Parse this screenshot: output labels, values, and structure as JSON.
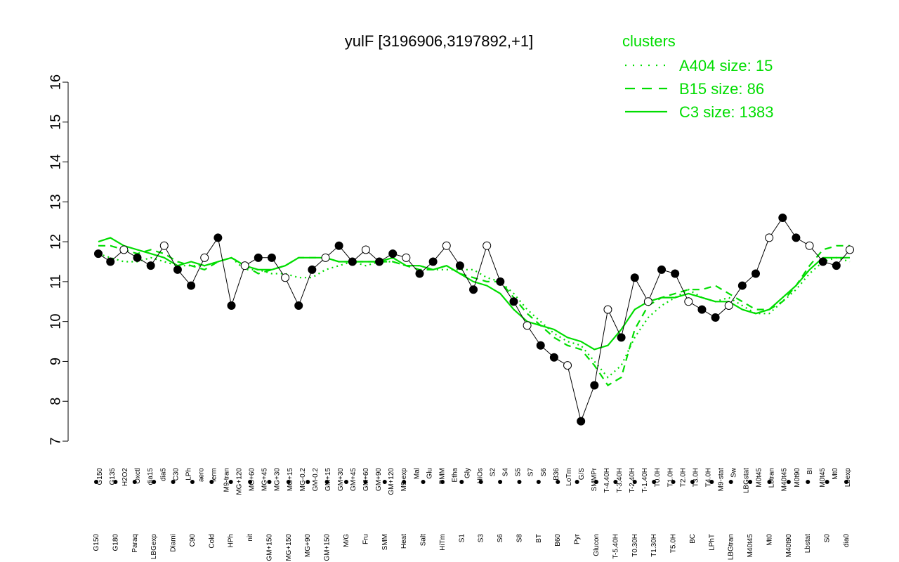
{
  "chart_data": {
    "type": "line",
    "title": "yulF [3196906,3197892,+1]",
    "xlabel": "",
    "ylabel": "",
    "ylim": [
      7,
      16
    ],
    "yticks": [
      7,
      8,
      9,
      10,
      11,
      12,
      13,
      14,
      15,
      16
    ],
    "grid": false,
    "legend": {
      "title": "clusters",
      "placement": "top-right",
      "entries": [
        {
          "label": "A404 size: 15",
          "style": "dotted"
        },
        {
          "label": "B15 size: 86",
          "style": "dashed"
        },
        {
          "label": "C3 size: 1383",
          "style": "solid"
        }
      ]
    },
    "colors": {
      "series": "#00dd00",
      "points_line": "#000000"
    },
    "x_tick_labels": [
      "G150",
      "G180",
      "G135",
      "Paraq",
      "H2O2",
      "Oxctl",
      "LBGexp",
      "dia15",
      "Diami",
      "dia5",
      "C90",
      "C30",
      "Cold",
      "LPh",
      "HPh",
      "aero",
      "nit",
      "ferm",
      "GM+150",
      "MG+150",
      "M9-tran",
      "MG+120",
      "MG+90",
      "MG+60",
      "MG+45",
      "MG+30",
      "MG+15",
      "MG-0.2",
      "GM-0.2",
      "GM+15",
      "GM+30",
      "GM+45",
      "GM+60",
      "GM+90",
      "GM+120",
      "M/G",
      "M9-exp",
      "Mal",
      "Fru",
      "Glu",
      "SMM",
      "BMM",
      "Heat",
      "Etha",
      "Salt",
      "Gly",
      "HiTm",
      "HiOs",
      "S1",
      "S2",
      "S3",
      "S4",
      "S5",
      "S6",
      "S7",
      "S8",
      "S6",
      "BT",
      "B36",
      "B60",
      "LoTm",
      "Pyr",
      "G/S",
      "Glucon",
      "SMMPr",
      "T-5.40H",
      "T-4.40H",
      "T-3.40H",
      "T-2.40H",
      "T-1.40H",
      "T0.0H",
      "T0.30H",
      "T1.0H",
      "T1.30H",
      "T2.0H",
      "T3.0H",
      "T4.0H",
      "T5.0H",
      "M9-stat",
      "BC",
      "Sw",
      "LPhT",
      "LBGstat",
      "LBGtran",
      "M0t45",
      "M40t45",
      "Lbtran",
      "Mt0",
      "M40t90",
      "M0t90",
      "Lbstat",
      "BI",
      "S0",
      "M0t45",
      "dia0",
      "Mt0",
      "Lbexp",
      "Lbexp"
    ],
    "x_tick_labels_top": [
      "G150",
      "G135",
      "H2O2",
      "Oxctl",
      "dia15",
      "dia5",
      "C30",
      "LPh",
      "aero",
      "ferm",
      "M9-tran",
      "MG+120",
      "MG+60",
      "MG+45",
      "MG+30",
      "MG+15",
      "MG-0.2",
      "GM-0.2",
      "GM+15",
      "GM+30",
      "GM+45",
      "GM+60",
      "GM+90",
      "GM+120",
      "M9-exp",
      "Mal",
      "Glu",
      "BMM",
      "Etha",
      "Gly",
      "HiOs",
      "S2",
      "S4",
      "S5",
      "S7",
      "S6",
      "B36",
      "LoTm",
      "G/S",
      "SMMPr",
      "T-4.40H",
      "T-3.40H",
      "T-2.40H",
      "T-1.40H",
      "T0.0H",
      "T1.0H",
      "T2.0H",
      "T3.0H",
      "T4.0H",
      "M9-stat",
      "Sw",
      "LBGstat",
      "M0t45",
      "Lbtran",
      "M40t45",
      "M0t90",
      "BI",
      "M0t45",
      "Mt0",
      "Lbexp"
    ],
    "x_tick_labels_bottom": [
      "G150",
      "G180",
      "Paraq",
      "LBGexp",
      "Diami",
      "C90",
      "Cold",
      "HPh",
      "nit",
      "GM+150",
      "MG+150",
      "MG+90",
      "GM+150",
      "M/G",
      "Fru",
      "SMM",
      "Heat",
      "Salt",
      "HiTm",
      "S1",
      "S3",
      "S6",
      "S8",
      "BT",
      "B60",
      "Pyr",
      "Glucon",
      "T-5.40H",
      "T0.30H",
      "T1.30H",
      "T5.0H",
      "BC",
      "LPhT",
      "LBGtran",
      "M40t45",
      "Mt0",
      "M40t90",
      "Lbstat",
      "S0",
      "dia0"
    ],
    "series": [
      {
        "name": "A404 size: 15",
        "style": "dotted",
        "x": [
          1,
          10,
          20,
          30,
          40,
          50,
          60,
          70,
          80,
          90,
          100,
          110,
          120,
          130,
          140,
          150,
          160,
          170,
          180,
          190,
          200,
          210,
          220,
          230,
          240,
          250,
          260,
          270,
          280,
          290,
          300,
          310,
          320,
          330,
          340,
          350,
          360,
          370,
          380,
          390,
          400,
          410,
          420,
          430,
          440,
          450,
          460,
          470,
          480,
          490,
          500,
          510,
          520,
          530,
          540,
          550,
          560
        ],
        "values": [
          11.7,
          11.6,
          11.5,
          11.5,
          11.6,
          11.5,
          11.4,
          11.4,
          11.4,
          11.5,
          11.6,
          11.3,
          11.3,
          11.2,
          11.2,
          11.1,
          11.1,
          11.3,
          11.4,
          11.5,
          11.4,
          11.5,
          11.5,
          11.4,
          11.4,
          11.3,
          11.3,
          11.3,
          11.3,
          11.1,
          11.0,
          10.7,
          10.3,
          10.0,
          9.7,
          9.5,
          9.4,
          9.0,
          8.6,
          8.9,
          9.6,
          10.1,
          10.4,
          10.6,
          10.8,
          10.6,
          10.5,
          10.6,
          10.4,
          10.2,
          10.2,
          10.5,
          10.8,
          11.2,
          11.5,
          11.6,
          11.5
        ]
      },
      {
        "name": "B15 size: 86",
        "style": "dashed",
        "x": [
          1,
          10,
          20,
          30,
          40,
          50,
          60,
          70,
          80,
          90,
          100,
          110,
          120,
          130,
          140,
          150,
          160,
          170,
          180,
          190,
          200,
          210,
          220,
          230,
          240,
          250,
          260,
          270,
          280,
          290,
          300,
          310,
          320,
          330,
          340,
          350,
          360,
          370,
          380,
          390,
          400,
          410,
          420,
          430,
          440,
          450,
          460,
          470,
          480,
          490,
          500,
          510,
          520,
          530,
          540,
          550,
          560
        ],
        "values": [
          11.9,
          11.9,
          11.8,
          11.7,
          11.8,
          11.7,
          11.5,
          11.4,
          11.3,
          11.5,
          11.6,
          11.4,
          11.2,
          11.3,
          11.4,
          11.6,
          11.6,
          11.6,
          11.5,
          11.5,
          11.5,
          11.5,
          11.5,
          11.4,
          11.3,
          11.3,
          11.4,
          11.2,
          11.1,
          11.0,
          11.0,
          10.6,
          10.2,
          9.9,
          9.6,
          9.4,
          9.3,
          8.9,
          8.4,
          8.6,
          9.8,
          10.4,
          10.6,
          10.7,
          10.8,
          10.8,
          10.9,
          10.7,
          10.5,
          10.3,
          10.3,
          10.5,
          10.9,
          11.4,
          11.8,
          11.9,
          11.9
        ]
      },
      {
        "name": "C3 size: 1383",
        "style": "solid",
        "x": [
          1,
          10,
          20,
          30,
          40,
          50,
          60,
          70,
          80,
          90,
          100,
          110,
          120,
          130,
          140,
          150,
          160,
          170,
          180,
          190,
          200,
          210,
          220,
          230,
          240,
          250,
          260,
          270,
          280,
          290,
          300,
          310,
          320,
          330,
          340,
          350,
          360,
          370,
          380,
          390,
          400,
          410,
          420,
          430,
          440,
          450,
          460,
          470,
          480,
          490,
          500,
          510,
          520,
          530,
          540,
          550,
          560
        ],
        "values": [
          12.0,
          12.1,
          11.9,
          11.8,
          11.7,
          11.6,
          11.4,
          11.5,
          11.4,
          11.5,
          11.6,
          11.4,
          11.3,
          11.3,
          11.4,
          11.6,
          11.6,
          11.6,
          11.5,
          11.5,
          11.5,
          11.5,
          11.6,
          11.4,
          11.4,
          11.3,
          11.4,
          11.2,
          11.0,
          10.9,
          10.7,
          10.3,
          10.0,
          9.9,
          9.8,
          9.6,
          9.5,
          9.3,
          9.4,
          9.8,
          10.3,
          10.5,
          10.6,
          10.6,
          10.7,
          10.6,
          10.5,
          10.5,
          10.3,
          10.2,
          10.3,
          10.6,
          10.9,
          11.3,
          11.6,
          11.6,
          11.6
        ]
      },
      {
        "name": "",
        "style": "points",
        "x": [
          1,
          10,
          20,
          30,
          40,
          50,
          60,
          70,
          80,
          90,
          100,
          110,
          120,
          130,
          140,
          150,
          160,
          170,
          180,
          190,
          200,
          210,
          220,
          230,
          240,
          250,
          260,
          270,
          280,
          290,
          300,
          310,
          320,
          330,
          340,
          350,
          360,
          370,
          380,
          390,
          400,
          410,
          420,
          430,
          440,
          450,
          460,
          470,
          480,
          490,
          500,
          510,
          520,
          530,
          540,
          550,
          560
        ],
        "values": [
          11.7,
          11.5,
          11.8,
          11.6,
          11.4,
          11.9,
          11.3,
          10.9,
          11.6,
          12.1,
          10.4,
          11.4,
          11.6,
          11.6,
          11.1,
          10.4,
          11.3,
          11.6,
          11.9,
          11.5,
          11.8,
          11.5,
          11.7,
          11.6,
          11.2,
          11.5,
          11.9,
          11.4,
          10.8,
          11.9,
          11.0,
          10.5,
          9.9,
          9.4,
          9.1,
          8.9,
          7.5,
          8.4,
          10.3,
          9.6,
          11.1,
          10.5,
          11.3,
          11.2,
          10.5,
          10.3,
          10.1,
          10.4,
          10.9,
          11.2,
          12.1,
          12.6,
          12.1,
          11.9,
          11.5,
          11.4,
          11.8
        ]
      }
    ]
  }
}
